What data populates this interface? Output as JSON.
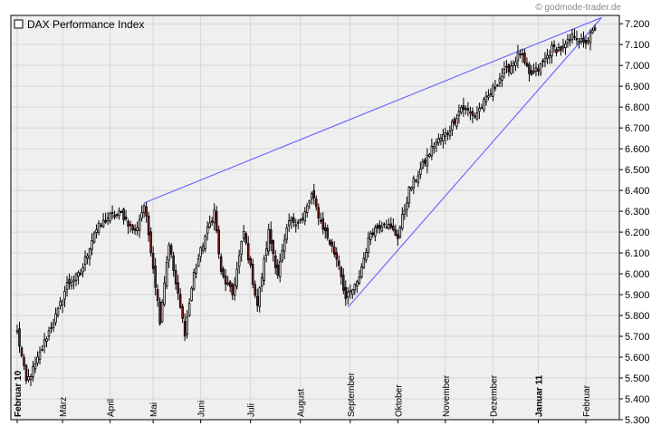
{
  "credit": "© godmode-trader.de",
  "chart_data": {
    "type": "candlestick",
    "legend": "DAX Performance Index",
    "ylim": [
      5300,
      7240
    ],
    "yticks": [
      "5.300",
      "5.400",
      "5.500",
      "5.600",
      "5.700",
      "5.800",
      "5.900",
      "6.000",
      "6.100",
      "6.200",
      "6.300",
      "6.400",
      "6.500",
      "6.600",
      "6.700",
      "6.800",
      "6.900",
      "7.000",
      "7.100",
      "7.200"
    ],
    "ytick_values": [
      5300,
      5400,
      5500,
      5600,
      5700,
      5800,
      5900,
      6000,
      6100,
      6200,
      6300,
      6400,
      6500,
      6600,
      6700,
      6800,
      6900,
      7000,
      7100,
      7200
    ],
    "x_months": [
      {
        "label": "Februar 10",
        "index": 0,
        "bold": true
      },
      {
        "label": "März",
        "index": 20,
        "bold": false
      },
      {
        "label": "April",
        "index": 41,
        "bold": false
      },
      {
        "label": "Mai",
        "index": 60,
        "bold": false
      },
      {
        "label": "Juni",
        "index": 81,
        "bold": false
      },
      {
        "label": "Juli",
        "index": 103,
        "bold": false
      },
      {
        "label": "August",
        "index": 125,
        "bold": false
      },
      {
        "label": "September",
        "index": 147,
        "bold": false
      },
      {
        "label": "Oktober",
        "index": 168,
        "bold": false
      },
      {
        "label": "November",
        "index": 189,
        "bold": false
      },
      {
        "label": "Dezember",
        "index": 210,
        "bold": false
      },
      {
        "label": "Januar 11",
        "index": 230,
        "bold": true
      },
      {
        "label": "Februar",
        "index": 251,
        "bold": false
      }
    ],
    "trendlines": [
      {
        "from": {
          "index": 56,
          "value": 6340
        },
        "to": {
          "index": 258,
          "value": 7230
        }
      },
      {
        "from": {
          "index": 146,
          "value": 5840
        },
        "to": {
          "index": 258,
          "value": 7230
        }
      }
    ],
    "keypoints": [
      [
        0,
        5720
      ],
      [
        4,
        5480
      ],
      [
        8,
        5560
      ],
      [
        13,
        5700
      ],
      [
        18,
        5820
      ],
      [
        22,
        5950
      ],
      [
        28,
        6000
      ],
      [
        34,
        6200
      ],
      [
        40,
        6270
      ],
      [
        46,
        6290
      ],
      [
        52,
        6200
      ],
      [
        56,
        6330
      ],
      [
        59,
        6120
      ],
      [
        63,
        5780
      ],
      [
        67,
        6150
      ],
      [
        70,
        5950
      ],
      [
        74,
        5720
      ],
      [
        78,
        6000
      ],
      [
        83,
        6180
      ],
      [
        87,
        6300
      ],
      [
        90,
        6000
      ],
      [
        95,
        5900
      ],
      [
        100,
        6200
      ],
      [
        106,
        5850
      ],
      [
        111,
        6200
      ],
      [
        115,
        6000
      ],
      [
        120,
        6250
      ],
      [
        126,
        6260
      ],
      [
        130,
        6380
      ],
      [
        134,
        6250
      ],
      [
        138,
        6150
      ],
      [
        142,
        6050
      ],
      [
        145,
        5880
      ],
      [
        150,
        5950
      ],
      [
        156,
        6200
      ],
      [
        162,
        6250
      ],
      [
        168,
        6180
      ],
      [
        173,
        6400
      ],
      [
        178,
        6500
      ],
      [
        184,
        6620
      ],
      [
        190,
        6680
      ],
      [
        196,
        6800
      ],
      [
        202,
        6760
      ],
      [
        208,
        6850
      ],
      [
        213,
        6940
      ],
      [
        218,
        7000
      ],
      [
        222,
        7060
      ],
      [
        226,
        6950
      ],
      [
        230,
        6980
      ],
      [
        236,
        7080
      ],
      [
        241,
        7080
      ],
      [
        246,
        7150
      ],
      [
        250,
        7100
      ],
      [
        255,
        7170
      ]
    ]
  }
}
